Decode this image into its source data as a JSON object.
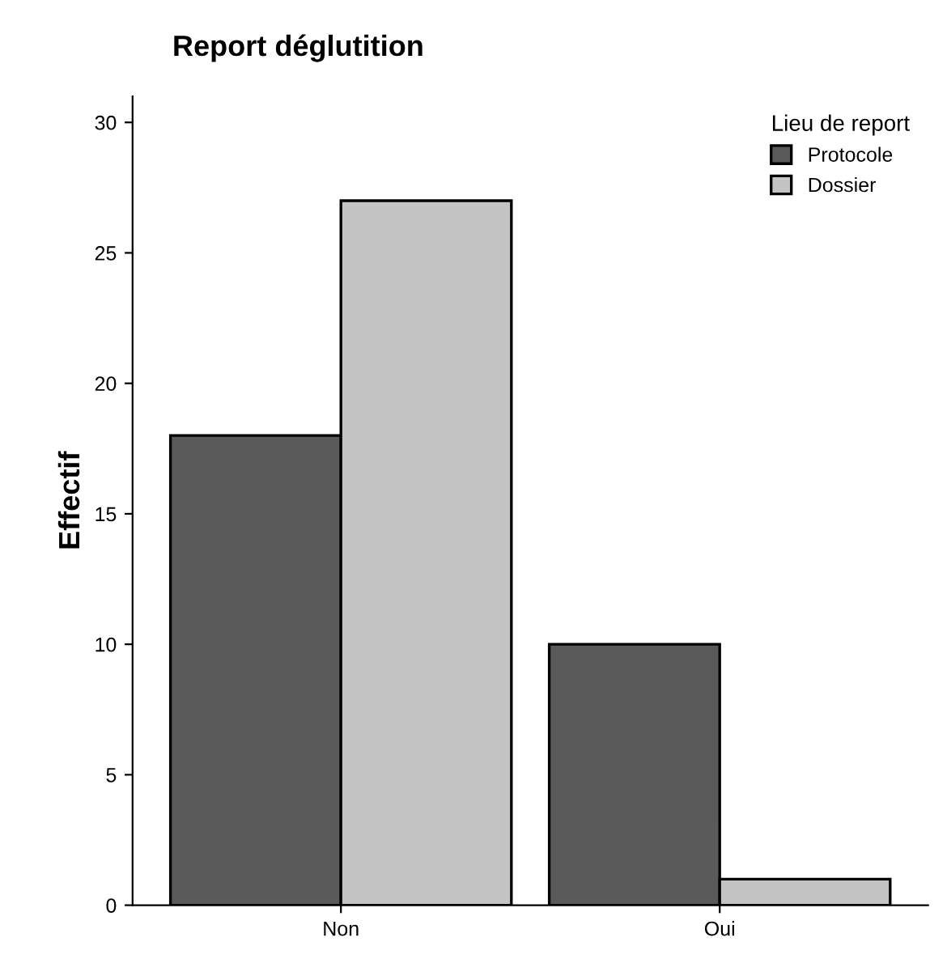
{
  "chart_data": {
    "type": "bar",
    "title": "Report déglutition",
    "xlabel": null,
    "ylabel": "Effectif",
    "legend_title": "Lieu de report",
    "categories": [
      "Non",
      "Oui"
    ],
    "series": [
      {
        "name": "Protocole",
        "color": "#5a5a5a",
        "values": [
          18,
          10
        ]
      },
      {
        "name": "Dossier",
        "color": "#c4c4c4",
        "values": [
          27,
          1
        ]
      }
    ],
    "ylim": [
      0,
      31
    ],
    "yticks": [
      0,
      5,
      10,
      15,
      20,
      25,
      30
    ],
    "grid": false,
    "legend": "top right"
  }
}
